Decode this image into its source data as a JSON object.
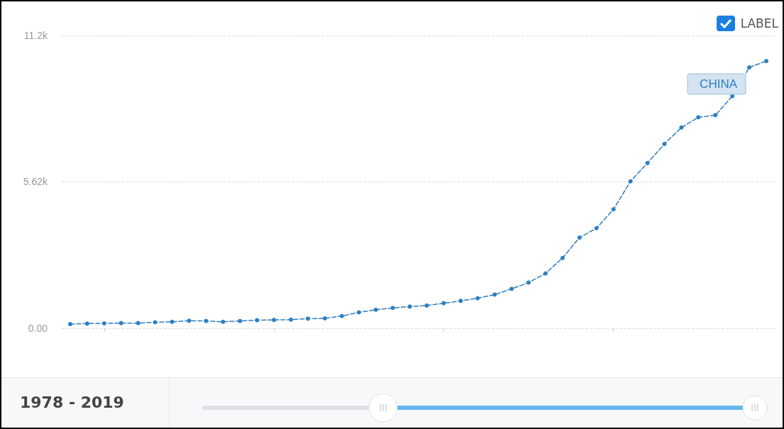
{
  "chart_data": {
    "type": "line",
    "categories": [
      null,
      null,
      null,
      null,
      null,
      null,
      null,
      null,
      null,
      null,
      null,
      null,
      null,
      null,
      null,
      null,
      null,
      null,
      null,
      null,
      null,
      null,
      null,
      null,
      null,
      null,
      null,
      null,
      null,
      null,
      null,
      null,
      null,
      null,
      null,
      null,
      null,
      null,
      null,
      null,
      null,
      null
    ],
    "series": [
      {
        "name": "CHINA",
        "color": "#2e7fc0",
        "values": [
          160,
          180,
          190,
          200,
          200,
          230,
          250,
          290,
          280,
          250,
          280,
          310,
          320,
          330,
          370,
          380,
          470,
          610,
          710,
          780,
          830,
          870,
          960,
          1050,
          1150,
          1290,
          1510,
          1750,
          2100,
          2690,
          3470,
          3830,
          4550,
          5620,
          6320,
          7050,
          7680,
          8070,
          8150,
          8880,
          9980,
          10220
        ]
      }
    ],
    "ylim": [
      0,
      11200
    ],
    "yticks": [
      {
        "value": 0,
        "label": "0.00"
      },
      {
        "value": 5620,
        "label": "5.62k"
      },
      {
        "value": 11200,
        "label": "11.2k"
      }
    ],
    "grid": "y",
    "marker": "circle",
    "line_style": "dashed",
    "legend": "top right",
    "annotations": [
      "LABEL",
      "1978 - 2019"
    ]
  }
}
